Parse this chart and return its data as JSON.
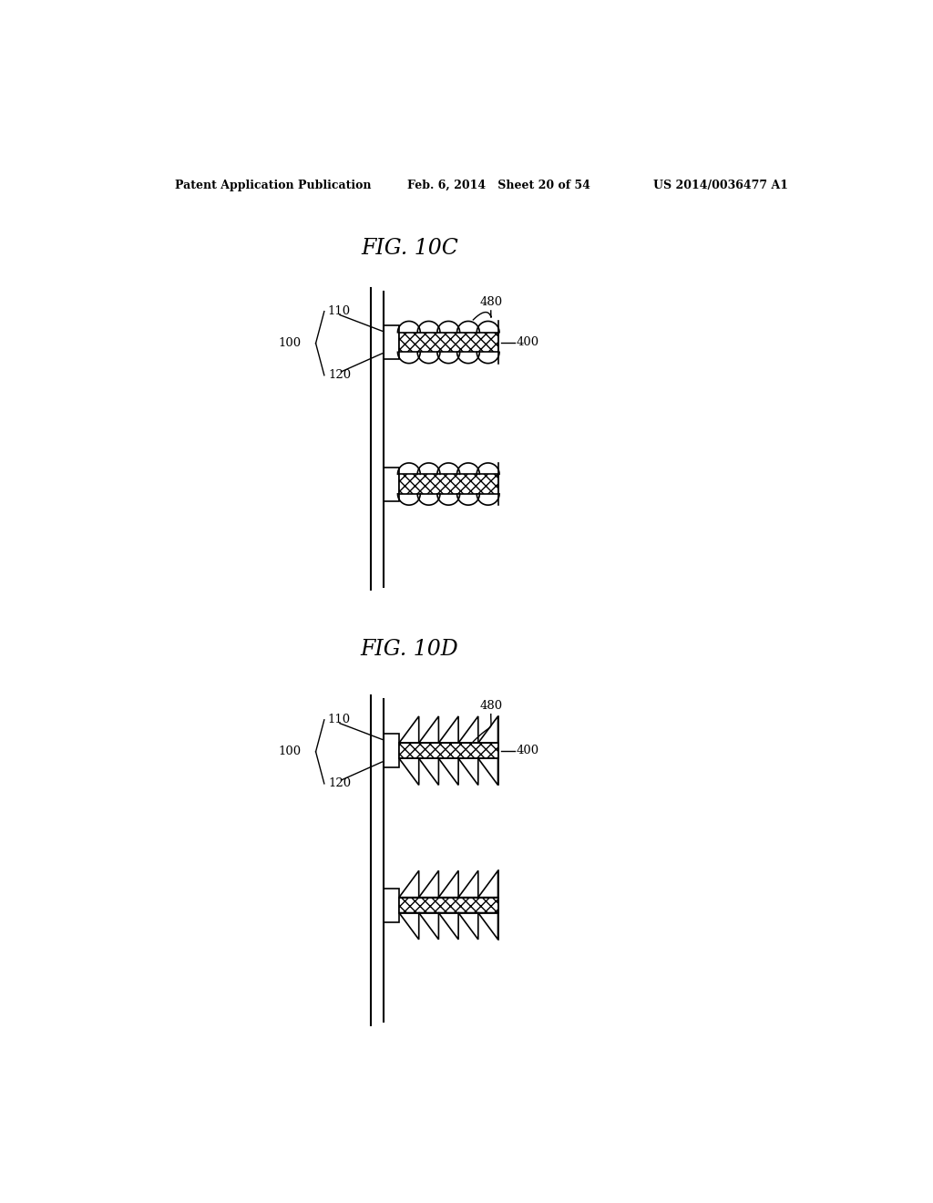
{
  "bg_color": "#ffffff",
  "header_left": "Patent Application Publication",
  "header_mid": "Feb. 6, 2014   Sheet 20 of 54",
  "header_right": "US 2014/0036477 A1",
  "fig_title_c": "FIG. 10C",
  "fig_title_d": "FIG. 10D",
  "label_100": "100",
  "label_110": "110",
  "label_120": "120",
  "label_400": "400",
  "label_480": "480"
}
